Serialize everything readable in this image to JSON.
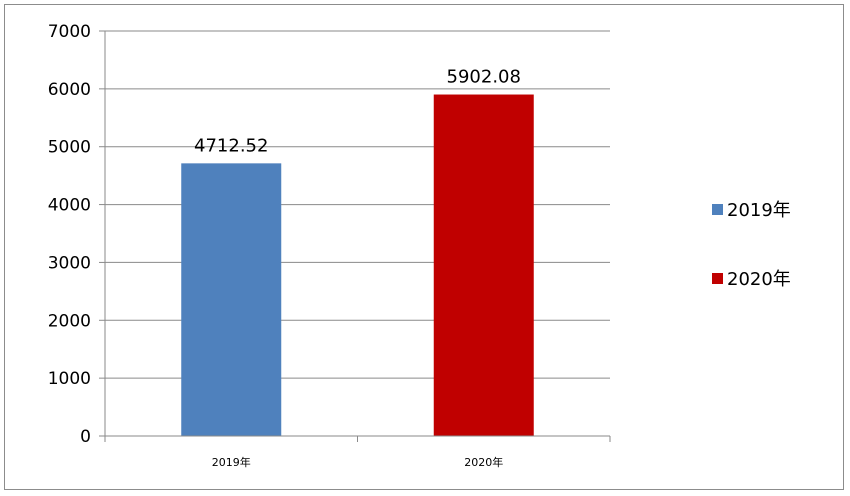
{
  "chart_data": {
    "type": "bar",
    "categories": [
      "2019年",
      "2020年"
    ],
    "values": [
      4712.52,
      5902.08
    ],
    "data_labels": [
      "4712.52",
      "5902.08"
    ],
    "colors": [
      "#4f81bd",
      "#c00000"
    ],
    "legend": {
      "position": "right",
      "entries": [
        {
          "label": "2019年",
          "color": "#4f81bd"
        },
        {
          "label": "2020年",
          "color": "#c00000"
        }
      ]
    },
    "ylim": [
      0,
      7000
    ],
    "yticks": [
      0,
      1000,
      2000,
      3000,
      4000,
      5000,
      6000,
      7000
    ],
    "grid": true,
    "title": "",
    "xlabel": "",
    "ylabel": ""
  }
}
